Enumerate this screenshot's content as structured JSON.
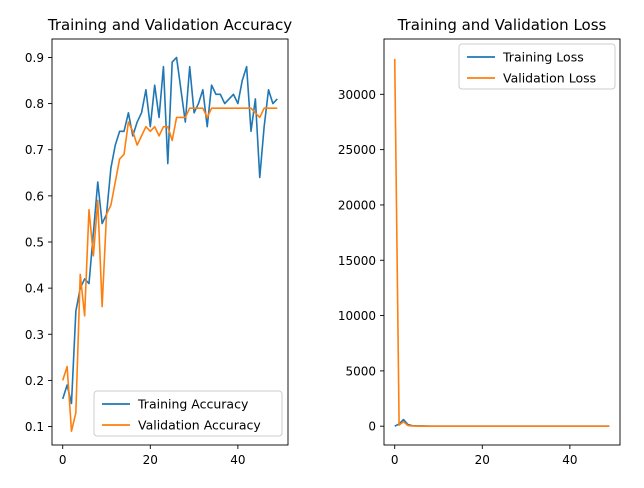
{
  "colors": {
    "training": "#1f77b4",
    "validation": "#ff7f0e",
    "background": "#ffffff",
    "axes": "#000000",
    "legend_border": "#cccccc"
  },
  "chart_data": [
    {
      "type": "line",
      "title": "Training and Validation Accuracy",
      "xlabel": "",
      "ylabel": "",
      "xlim": [
        -2.45,
        51.45
      ],
      "ylim": [
        0.06,
        0.94
      ],
      "xticks": [
        0,
        20,
        40
      ],
      "yticks": [
        0.1,
        0.2,
        0.3,
        0.4,
        0.5,
        0.6,
        0.7,
        0.8,
        0.9
      ],
      "grid": false,
      "legend_position": "lower-right",
      "series": [
        {
          "name": "Training Accuracy",
          "color_key": "training",
          "x": [
            0,
            1,
            2,
            3,
            4,
            5,
            6,
            7,
            8,
            9,
            10,
            11,
            12,
            13,
            14,
            15,
            16,
            17,
            18,
            19,
            20,
            21,
            22,
            23,
            24,
            25,
            26,
            27,
            28,
            29,
            30,
            31,
            32,
            33,
            34,
            35,
            36,
            37,
            38,
            39,
            40,
            41,
            42,
            43,
            44,
            45,
            46,
            47,
            48,
            49
          ],
          "y": [
            0.16,
            0.19,
            0.15,
            0.35,
            0.4,
            0.42,
            0.41,
            0.52,
            0.63,
            0.54,
            0.56,
            0.66,
            0.71,
            0.74,
            0.74,
            0.78,
            0.73,
            0.76,
            0.78,
            0.83,
            0.75,
            0.84,
            0.77,
            0.88,
            0.67,
            0.89,
            0.9,
            0.83,
            0.76,
            0.88,
            0.78,
            0.8,
            0.83,
            0.75,
            0.84,
            0.82,
            0.82,
            0.8,
            0.81,
            0.82,
            0.8,
            0.85,
            0.88,
            0.74,
            0.81,
            0.64,
            0.75,
            0.83,
            0.8,
            0.81
          ]
        },
        {
          "name": "Validation Accuracy",
          "color_key": "validation",
          "x": [
            0,
            1,
            2,
            3,
            4,
            5,
            6,
            7,
            8,
            9,
            10,
            11,
            12,
            13,
            14,
            15,
            16,
            17,
            18,
            19,
            20,
            21,
            22,
            23,
            24,
            25,
            26,
            27,
            28,
            29,
            30,
            31,
            32,
            33,
            34,
            35,
            36,
            37,
            38,
            39,
            40,
            41,
            42,
            43,
            44,
            45,
            46,
            47,
            48,
            49
          ],
          "y": [
            0.2,
            0.23,
            0.09,
            0.13,
            0.43,
            0.34,
            0.57,
            0.47,
            0.59,
            0.36,
            0.56,
            0.58,
            0.63,
            0.68,
            0.69,
            0.76,
            0.74,
            0.71,
            0.73,
            0.75,
            0.74,
            0.75,
            0.73,
            0.75,
            0.75,
            0.72,
            0.77,
            0.77,
            0.77,
            0.79,
            0.79,
            0.79,
            0.79,
            0.77,
            0.79,
            0.79,
            0.79,
            0.79,
            0.79,
            0.79,
            0.79,
            0.79,
            0.79,
            0.79,
            0.78,
            0.77,
            0.79,
            0.79,
            0.79,
            0.79
          ]
        }
      ]
    },
    {
      "type": "line",
      "title": "Training and Validation Loss",
      "xlabel": "",
      "ylabel": "",
      "xlim": [
        -2.45,
        51.45
      ],
      "ylim": [
        -1700,
        35000
      ],
      "xticks": [
        0,
        20,
        40
      ],
      "yticks": [
        0,
        5000,
        10000,
        15000,
        20000,
        25000,
        30000
      ],
      "grid": false,
      "legend_position": "upper-right",
      "series": [
        {
          "name": "Training Loss",
          "color_key": "training",
          "x": [
            0,
            1,
            2,
            3,
            4,
            5,
            6,
            7,
            8,
            9,
            10,
            11,
            12,
            13,
            14,
            15,
            16,
            17,
            18,
            19,
            20,
            21,
            22,
            23,
            24,
            25,
            26,
            27,
            28,
            29,
            30,
            31,
            32,
            33,
            34,
            35,
            36,
            37,
            38,
            39,
            40,
            41,
            42,
            43,
            44,
            45,
            46,
            47,
            48,
            49
          ],
          "y": [
            0,
            200,
            600,
            150,
            50,
            30,
            20,
            10,
            5,
            5,
            5,
            5,
            5,
            5,
            5,
            5,
            5,
            5,
            5,
            5,
            5,
            5,
            5,
            5,
            5,
            5,
            5,
            5,
            5,
            5,
            5,
            5,
            5,
            5,
            5,
            5,
            5,
            5,
            5,
            5,
            5,
            5,
            5,
            5,
            5,
            5,
            5,
            5,
            5,
            5
          ]
        },
        {
          "name": "Validation Loss",
          "color_key": "validation",
          "x": [
            0,
            1,
            2,
            3,
            4,
            5,
            6,
            7,
            8,
            9,
            10,
            11,
            12,
            13,
            14,
            15,
            16,
            17,
            18,
            19,
            20,
            21,
            22,
            23,
            24,
            25,
            26,
            27,
            28,
            29,
            30,
            31,
            32,
            33,
            34,
            35,
            36,
            37,
            38,
            39,
            40,
            41,
            42,
            43,
            44,
            45,
            46,
            47,
            48,
            49
          ],
          "y": [
            33200,
            100,
            400,
            60,
            20,
            10,
            5,
            5,
            5,
            5,
            5,
            5,
            5,
            5,
            5,
            5,
            5,
            5,
            5,
            5,
            5,
            5,
            5,
            5,
            5,
            5,
            5,
            5,
            5,
            5,
            5,
            5,
            5,
            5,
            5,
            5,
            5,
            5,
            5,
            5,
            5,
            5,
            5,
            5,
            5,
            5,
            5,
            5,
            5,
            5
          ]
        }
      ]
    }
  ]
}
